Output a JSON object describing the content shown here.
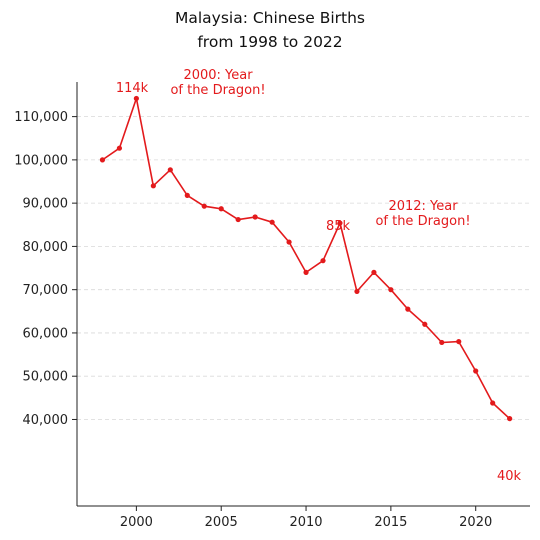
{
  "chart_data": {
    "type": "line",
    "title_line1": "Malaysia: Chinese Births",
    "title_line2": "from 1998 to 2022",
    "xlabel": "",
    "ylabel": "",
    "x": [
      1998,
      1999,
      2000,
      2001,
      2002,
      2003,
      2004,
      2005,
      2006,
      2007,
      2008,
      2009,
      2010,
      2011,
      2012,
      2013,
      2014,
      2015,
      2016,
      2017,
      2018,
      2019,
      2020,
      2021,
      2022
    ],
    "series": [
      {
        "values": [
          100000,
          102700,
          114200,
          94000,
          97700,
          91800,
          89300,
          88700,
          86200,
          86800,
          85600,
          81000,
          74000,
          76700,
          85400,
          69600,
          74000,
          70000,
          65500,
          62000,
          57800,
          58000,
          51200,
          43800,
          40200
        ]
      }
    ],
    "xlim": [
      1996.5,
      2023.2
    ],
    "ylim": [
      20000,
      118000
    ],
    "xticks": [
      2000,
      2005,
      2010,
      2015,
      2020
    ],
    "xtick_labels": [
      "2000",
      "2005",
      "2010",
      "2015",
      "2020"
    ],
    "yticks": [
      40000,
      50000,
      60000,
      70000,
      80000,
      90000,
      100000,
      110000
    ],
    "ytick_labels": [
      "40,000",
      "50,000",
      "60,000",
      "70,000",
      "80,000",
      "90,000",
      "100,000",
      "110,000"
    ],
    "grid": "horizontal dashed",
    "line_color": "#e31a1c",
    "annotations": {
      "peak_2000": "114k",
      "dragon_2000_line1": "2000: Year",
      "dragon_2000_line2": "of the Dragon!",
      "peak_2012": "85k",
      "dragon_2012_line1": "2012: Year",
      "dragon_2012_line2": "of the Dragon!",
      "end_2022": "40k"
    }
  }
}
